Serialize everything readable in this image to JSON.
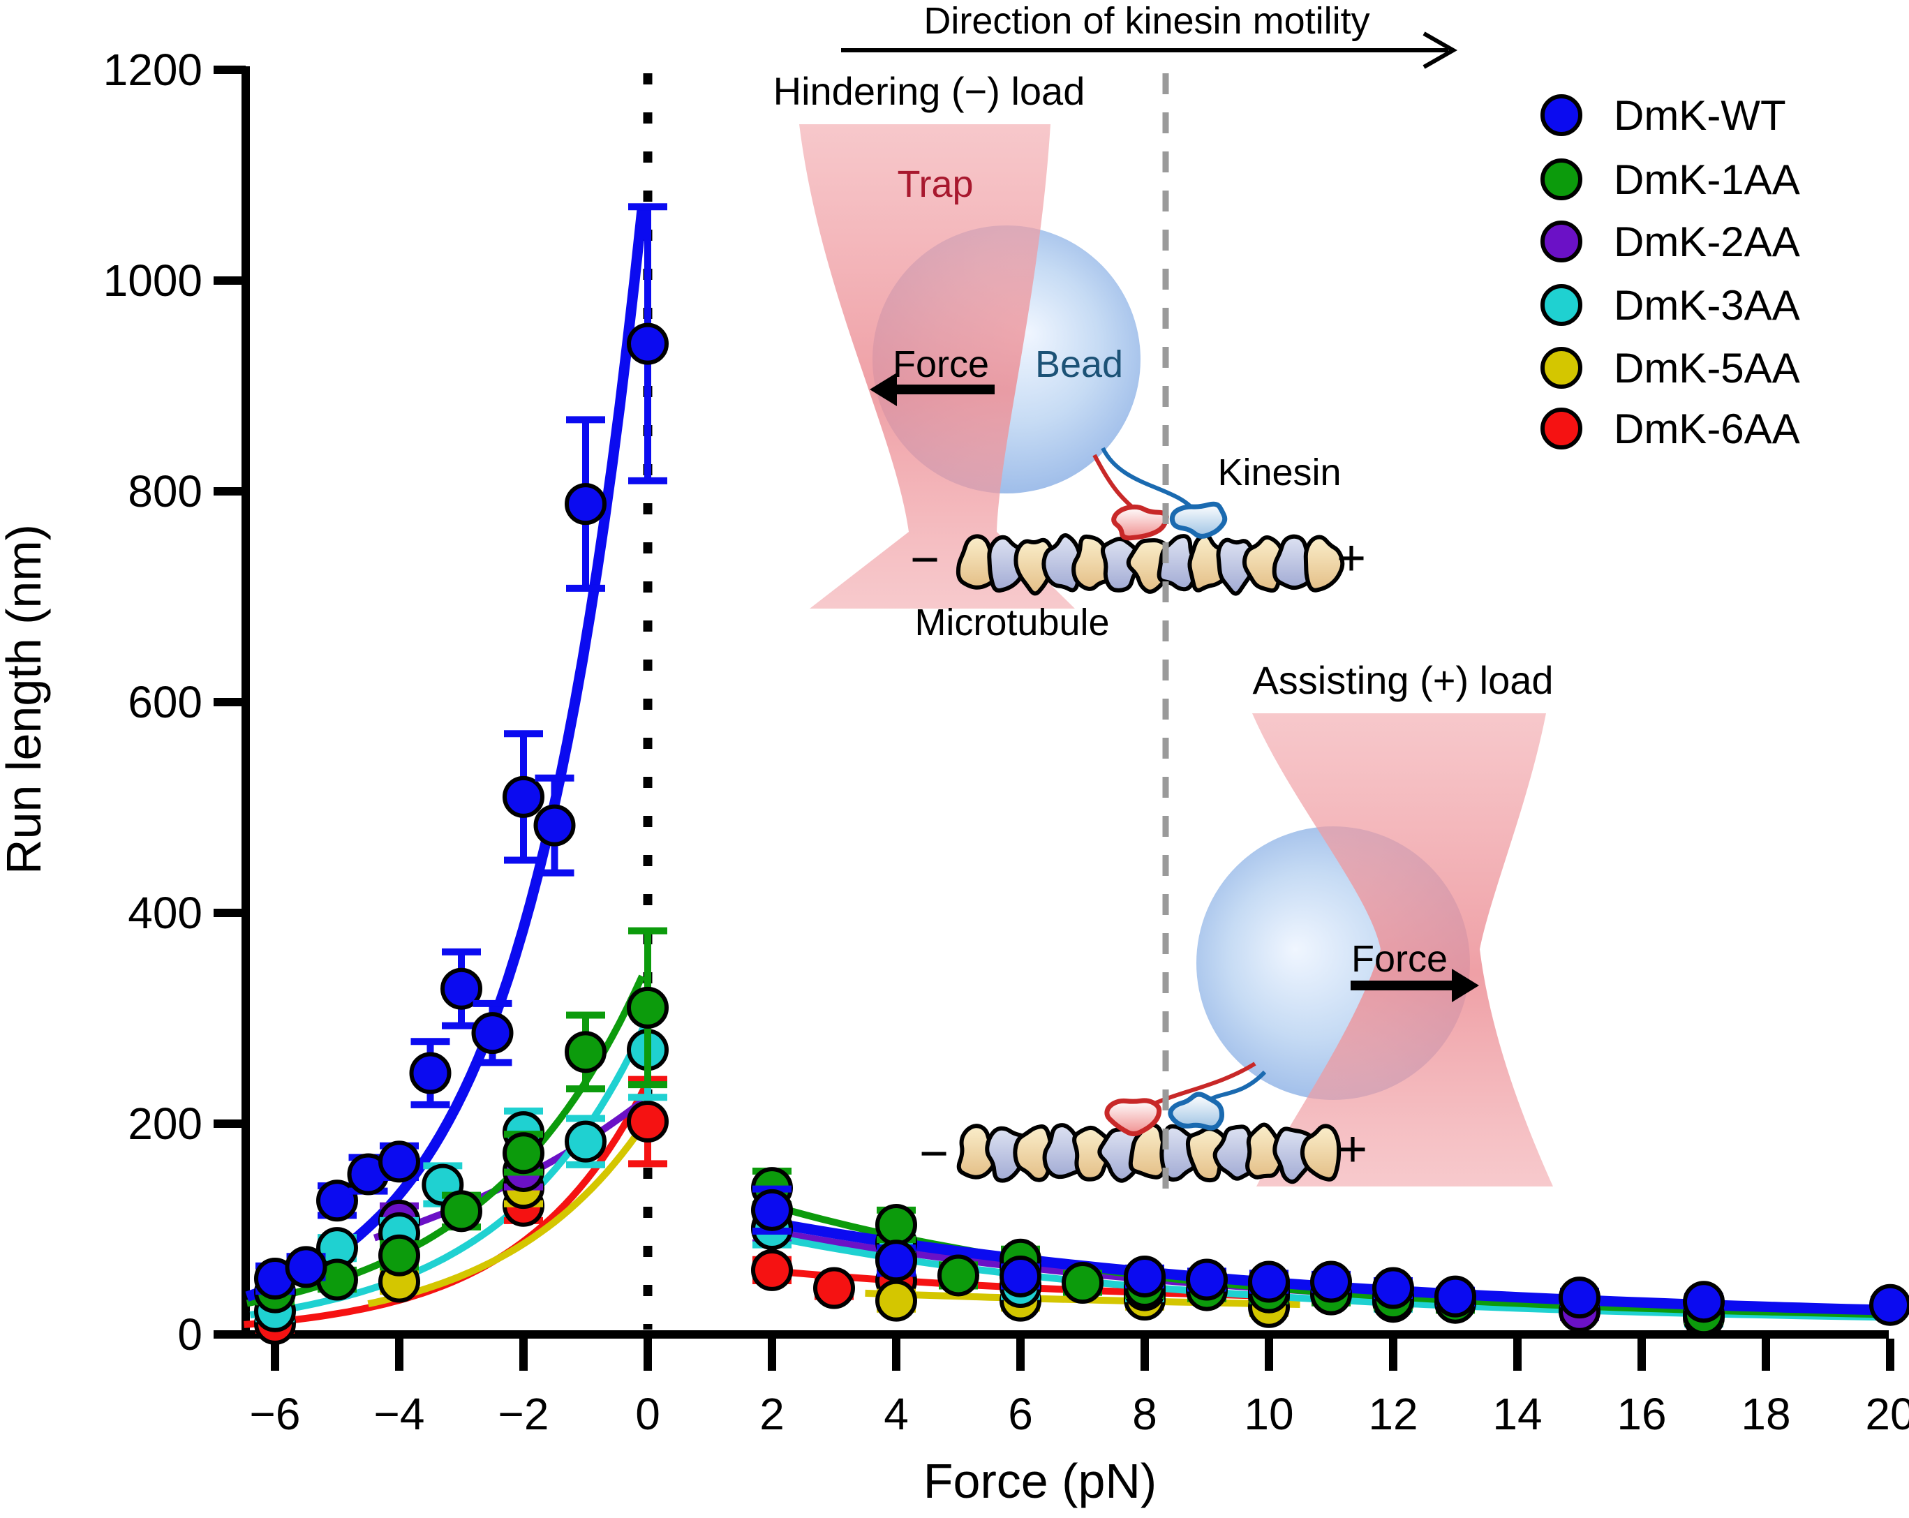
{
  "chart_data": {
    "type": "scatter",
    "title": "",
    "xlabel": "Force (pN)",
    "ylabel": "Run length (nm)",
    "xlim": [
      -6.8,
      20.3
    ],
    "ylim": [
      0,
      1200
    ],
    "x_ticks": {
      "values": [
        -6,
        -4,
        -2,
        0,
        2,
        4,
        6,
        8,
        10,
        12,
        14,
        16,
        18,
        20
      ],
      "labels": [
        "−6",
        "−4",
        "−2",
        "0",
        "2",
        "4",
        "6",
        "8",
        "10",
        "12",
        "14",
        "16",
        "18",
        "20"
      ]
    },
    "y_ticks": {
      "values": [
        0,
        200,
        400,
        600,
        800,
        1000,
        1200
      ],
      "labels": [
        "0",
        "200",
        "400",
        "600",
        "800",
        "1000",
        "1200"
      ]
    },
    "zero_force_dotted_line": true,
    "grid": false,
    "legend": {
      "position": "top-right",
      "items": [
        {
          "label": "DmK-WT",
          "color": "#0b0bf0"
        },
        {
          "label": "DmK-1AA",
          "color": "#0c9b0c"
        },
        {
          "label": "DmK-2AA",
          "color": "#6b11c6"
        },
        {
          "label": "DmK-3AA",
          "color": "#1fd1d1"
        },
        {
          "label": "DmK-5AA",
          "color": "#d4c600"
        },
        {
          "label": "DmK-6AA",
          "color": "#f51212"
        }
      ]
    },
    "series": [
      {
        "id": "DmK-6AA",
        "label": "DmK-6AA",
        "color": "#f51212",
        "hindering": {
          "x": [
            -6,
            -2,
            0
          ],
          "y": [
            10,
            122,
            202
          ],
          "err": [
            6,
            14,
            40
          ]
        },
        "assisting": {
          "x": [
            2,
            3,
            4,
            6,
            8,
            10
          ],
          "y": [
            61,
            44,
            51,
            47,
            38,
            36
          ],
          "err": [
            10,
            8,
            8,
            8,
            7,
            7
          ]
        },
        "fit_hindering": {
          "A": 240,
          "Fc": 2.0,
          "range": [
            -6.5,
            0
          ]
        },
        "fit_assisting": {
          "B": 45,
          "Fd": 6,
          "C": 28,
          "range": [
            1.8,
            10.5
          ]
        }
      },
      {
        "id": "DmK-5AA",
        "label": "DmK-5AA",
        "color": "#d4c600",
        "hindering": {
          "x": [
            -4,
            -2
          ],
          "y": [
            50,
            139
          ],
          "err": [
            9,
            15
          ]
        },
        "assisting": {
          "x": [
            4,
            6,
            8,
            10
          ],
          "y": [
            32,
            32,
            33,
            26
          ],
          "err": [
            8,
            7,
            7,
            6
          ]
        },
        "fit_hindering": {
          "A": 205,
          "Fc": 2.3,
          "range": [
            -4.5,
            0
          ]
        },
        "fit_assisting": {
          "B": 30,
          "Fd": 10,
          "C": 18,
          "range": [
            3.5,
            10.5
          ]
        }
      },
      {
        "id": "DmK-2AA",
        "label": "DmK-2AA",
        "color": "#6b11c6",
        "hindering": {
          "x": [
            -4,
            -2
          ],
          "y": [
            108,
            155
          ],
          "err": [
            14,
            15
          ]
        },
        "assisting": {
          "x": [
            2,
            4,
            6,
            8,
            10,
            12,
            15
          ],
          "y": [
            101,
            72,
            64,
            52,
            46,
            36,
            22
          ],
          "err": [
            14,
            10,
            9,
            8,
            8,
            7,
            6
          ]
        },
        "fit_hindering": {
          "A": 225,
          "Fc": 4.9,
          "range": [
            -4.4,
            0
          ]
        },
        "fit_assisting": {
          "B": 110,
          "Fd": 8,
          "C": 12,
          "range": [
            1.8,
            15.5
          ]
        }
      },
      {
        "id": "DmK-3AA",
        "label": "DmK-3AA",
        "color": "#1fd1d1",
        "hindering": {
          "x": [
            -6,
            -5,
            -4,
            -3.3,
            -2,
            -1,
            0
          ],
          "y": [
            22,
            82,
            96,
            142,
            192,
            183,
            270
          ],
          "err": [
            7,
            10,
            12,
            18,
            20,
            22,
            45
          ]
        },
        "assisting": {
          "x": [
            2,
            4,
            6,
            8,
            10,
            12,
            17
          ],
          "y": [
            100,
            87,
            45,
            42,
            40,
            31,
            16
          ],
          "err": [
            15,
            12,
            9,
            8,
            8,
            7,
            6
          ]
        },
        "fit_hindering": {
          "A": 300,
          "Fc": 2.3,
          "range": [
            -6.4,
            0
          ]
        },
        "fit_assisting": {
          "B": 110,
          "Fd": 7,
          "C": 10,
          "range": [
            1.8,
            20
          ]
        }
      },
      {
        "id": "DmK-1AA",
        "label": "DmK-1AA",
        "color": "#0c9b0c",
        "hindering": {
          "x": [
            -6,
            -5,
            -4,
            -3,
            -2,
            -1,
            0
          ],
          "y": [
            40,
            52,
            75,
            117,
            172,
            268,
            310
          ],
          "err": [
            9,
            9,
            11,
            15,
            18,
            35,
            73
          ]
        },
        "assisting": {
          "x": [
            2,
            4,
            5,
            6,
            7,
            8,
            9,
            10,
            11,
            12,
            13,
            17
          ],
          "y": [
            139,
            104,
            56,
            71,
            49,
            45,
            42,
            40,
            38,
            33,
            30,
            19
          ],
          "err": [
            16,
            14,
            10,
            10,
            9,
            8,
            8,
            8,
            8,
            7,
            7,
            6
          ]
        },
        "fit_hindering": {
          "A": 352,
          "Fc": 2.6,
          "range": [
            -6.45,
            0
          ]
        },
        "fit_assisting": {
          "B": 150,
          "Fd": 6.5,
          "C": 12,
          "range": [
            1.8,
            20
          ]
        }
      },
      {
        "id": "DmK-WT",
        "label": "DmK-WT",
        "color": "#0b0bf0",
        "hindering": {
          "x": [
            -6,
            -5.5,
            -5,
            -4.5,
            -4,
            -3.5,
            -3,
            -2.5,
            -2,
            -1.5,
            -1,
            0
          ],
          "y": [
            53,
            64,
            127,
            152,
            164,
            248,
            328,
            286,
            510,
            483,
            788,
            940
          ],
          "err": [
            12,
            10,
            14,
            16,
            15,
            30,
            35,
            28,
            60,
            45,
            80,
            130
          ]
        },
        "assisting": {
          "x": [
            2,
            4,
            6,
            8,
            9,
            10,
            11,
            12,
            13,
            15,
            17,
            20
          ],
          "y": [
            118,
            70,
            55,
            55,
            52,
            50,
            50,
            44,
            36,
            35,
            31,
            28
          ],
          "err": [
            20,
            12,
            9,
            8,
            8,
            8,
            7,
            7,
            6,
            6,
            5,
            5
          ]
        },
        "fit_hindering": {
          "A": 1120,
          "Fc": 1.875,
          "range": [
            -6.45,
            0
          ]
        },
        "fit_assisting": {
          "B": 120,
          "Fd": 9,
          "C": 10,
          "range": [
            1.8,
            20
          ]
        }
      }
    ]
  },
  "inset": {
    "direction_label": "Direction of kinesin motility",
    "hindering": {
      "title": "Hindering (−) load",
      "trap_label": "Trap",
      "force_label": "Force",
      "bead_label": "Bead",
      "kinesin_label": "Kinesin",
      "microtubule_label": "Microtubule",
      "minus": "−",
      "plus": "+"
    },
    "assisting": {
      "title": "Assisting (+) load",
      "force_label": "Force",
      "minus": "−",
      "plus": "+"
    },
    "colors": {
      "trap_pink": "#f2a6ab",
      "trap_text": "#a8182e",
      "bead_text": "#1c5276",
      "divider_gray": "#9a9a9a",
      "tubulin_tan": "#f1ddb0",
      "tubulin_blue": "#b4bcdc",
      "motor_red": "#c82828",
      "motor_blue": "#1a6ab0"
    }
  }
}
